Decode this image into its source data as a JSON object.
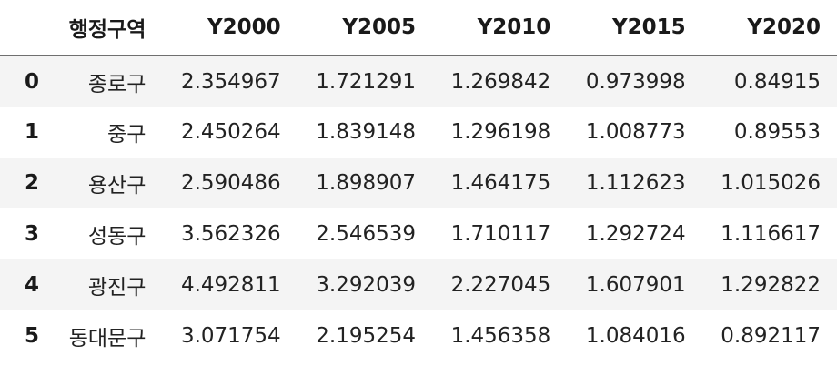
{
  "table": {
    "columns": [
      "",
      "행정구역",
      "Y2000",
      "Y2005",
      "Y2010",
      "Y2015",
      "Y2020"
    ],
    "rows": [
      {
        "index": "0",
        "name": "종로구",
        "values": [
          "2.354967",
          "1.721291",
          "1.269842",
          "0.973998",
          "0.84915"
        ]
      },
      {
        "index": "1",
        "name": "중구",
        "values": [
          "2.450264",
          "1.839148",
          "1.296198",
          "1.008773",
          "0.89553"
        ]
      },
      {
        "index": "2",
        "name": "용산구",
        "values": [
          "2.590486",
          "1.898907",
          "1.464175",
          "1.112623",
          "1.015026"
        ]
      },
      {
        "index": "3",
        "name": "성동구",
        "values": [
          "3.562326",
          "2.546539",
          "1.710117",
          "1.292724",
          "1.116617"
        ]
      },
      {
        "index": "4",
        "name": "광진구",
        "values": [
          "4.492811",
          "3.292039",
          "2.227045",
          "1.607901",
          "1.292822"
        ]
      },
      {
        "index": "5",
        "name": "동대문구",
        "values": [
          "3.071754",
          "2.195254",
          "1.456358",
          "1.084016",
          "0.892117"
        ]
      }
    ]
  }
}
